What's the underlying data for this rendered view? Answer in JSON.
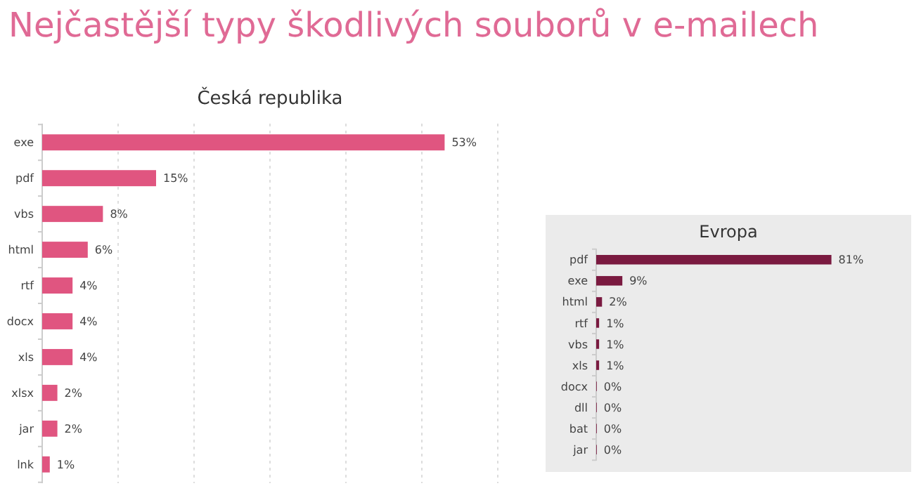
{
  "chart_data": [
    {
      "type": "bar",
      "orientation": "horizontal",
      "title": "Nejčastější typy škodlivých souborů v e-mailech",
      "subtitle": "Česká republika",
      "categories": [
        "exe",
        "pdf",
        "vbs",
        "html",
        "rtf",
        "docx",
        "xls",
        "xlsx",
        "jar",
        "lnk"
      ],
      "values": [
        53,
        15,
        8,
        6,
        4,
        4,
        4,
        2,
        2,
        1
      ],
      "value_labels": [
        "53%",
        "15%",
        "8%",
        "6%",
        "4%",
        "4%",
        "4%",
        "2%",
        "2%",
        "1%"
      ],
      "color": "#e05580",
      "xlim": [
        0,
        60
      ],
      "xticks": [
        {
          "value": 0,
          "label": null
        },
        {
          "value": 10,
          "label": null
        },
        {
          "value": 20,
          "label": null
        },
        {
          "value": 30,
          "label": null
        },
        {
          "value": 40,
          "label": null
        },
        {
          "value": 50,
          "label": null
        },
        {
          "value": 60,
          "label": null
        }
      ],
      "grid": "x",
      "tick_labels": "y"
    },
    {
      "type": "bar",
      "orientation": "horizontal",
      "title": "Evropa",
      "categories": [
        "pdf",
        "exe",
        "html",
        "rtf",
        "vbs",
        "xls",
        "docx",
        "dll",
        "bat",
        "jar"
      ],
      "values": [
        81,
        9,
        2,
        1,
        1,
        1,
        0.2,
        0.2,
        0.2,
        0.2
      ],
      "value_labels": [
        "81%",
        "9%",
        "2%",
        "1%",
        "1%",
        "1%",
        "0%",
        "0%",
        "0%",
        "0%"
      ],
      "color": "#7a1a40",
      "tick_labels": "y"
    }
  ]
}
